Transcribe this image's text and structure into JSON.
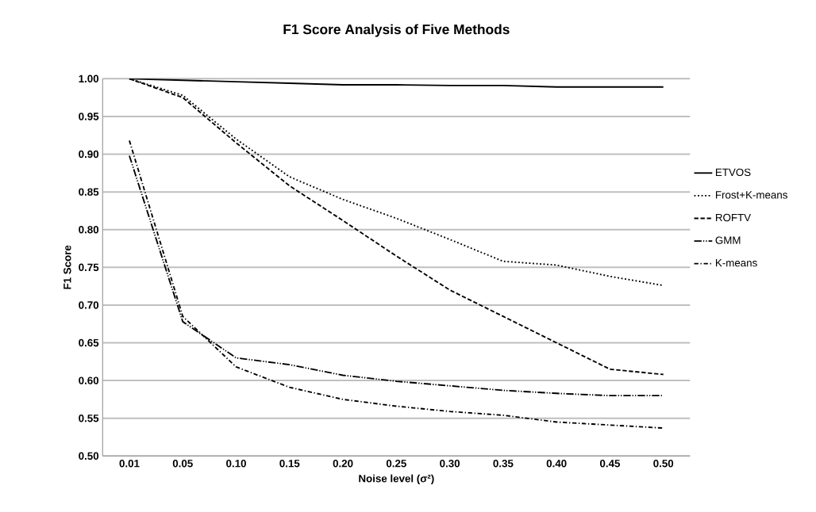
{
  "chart_data": {
    "type": "line",
    "title": "F1 Score Analysis of Five Methods",
    "xlabel": "Noise level (σ²)",
    "ylabel": "F1 Score",
    "categories": [
      "0.01",
      "0.05",
      "0.10",
      "0.15",
      "0.20",
      "0.25",
      "0.30",
      "0.35",
      "0.40",
      "0.45",
      "0.50"
    ],
    "series": [
      {
        "name": "ETVOS",
        "color": "#000000",
        "line_style": "solid",
        "values": [
          1.0,
          0.998,
          0.996,
          0.994,
          0.992,
          0.992,
          0.991,
          0.991,
          0.989,
          0.989,
          0.989
        ]
      },
      {
        "name": "Frost+K-means",
        "color": "#000000",
        "line_style": "dotted",
        "values": [
          1.0,
          0.978,
          0.92,
          0.87,
          0.84,
          0.815,
          0.787,
          0.758,
          0.753,
          0.738,
          0.726
        ]
      },
      {
        "name": "ROFTV",
        "color": "#000000",
        "line_style": "dashed",
        "values": [
          1.0,
          0.975,
          0.915,
          0.858,
          0.812,
          0.765,
          0.72,
          0.685,
          0.65,
          0.615,
          0.608
        ]
      },
      {
        "name": "GMM",
        "color": "#000000",
        "line_style": "dashdotdot",
        "values": [
          0.898,
          0.678,
          0.63,
          0.621,
          0.607,
          0.599,
          0.593,
          0.587,
          0.583,
          0.58,
          0.58
        ]
      },
      {
        "name": "K-means",
        "color": "#000000",
        "line_style": "dashdot",
        "values": [
          0.918,
          0.685,
          0.618,
          0.591,
          0.575,
          0.566,
          0.559,
          0.554,
          0.545,
          0.541,
          0.537
        ]
      }
    ],
    "ylim": [
      0.5,
      1.0
    ],
    "yticks": [
      {
        "value": 0.5,
        "label": "0.50"
      },
      {
        "value": 0.55,
        "label": "0.55"
      },
      {
        "value": 0.6,
        "label": "0.60"
      },
      {
        "value": 0.65,
        "label": "0.65"
      },
      {
        "value": 0.7,
        "label": "0.70"
      },
      {
        "value": 0.75,
        "label": "0.75"
      },
      {
        "value": 0.8,
        "label": "0.80"
      },
      {
        "value": 0.85,
        "label": "0.85"
      },
      {
        "value": 0.9,
        "label": "0.90"
      },
      {
        "value": 0.95,
        "label": "0.95"
      },
      {
        "value": 1.0,
        "label": "1.00"
      }
    ],
    "grid": "y",
    "legend": "right",
    "marker": "none"
  }
}
